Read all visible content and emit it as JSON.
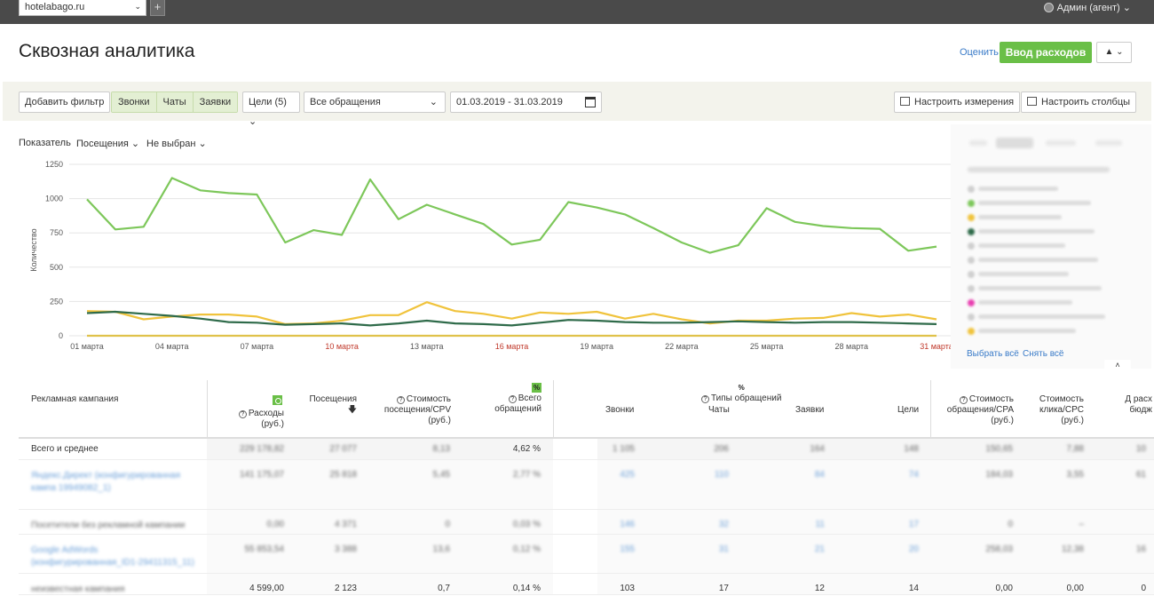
{
  "topbar": {
    "site": "hotelabago.ru",
    "add_icon": "plus-icon",
    "user": "Админ (агент)"
  },
  "header": {
    "title": "Сквозная аналитика",
    "rate_link": "Оценить",
    "expenses_button": "Ввод расходов",
    "export_icon": "export-icon"
  },
  "filters": {
    "add_filter": "Добавить фильтр",
    "segments": [
      "Звонки",
      "Чаты",
      "Заявки"
    ],
    "goals": "Цели (5)",
    "requests": "Все обращения",
    "date_range": "01.03.2019 - 31.03.2019",
    "configure_dimensions": "Настроить измерения",
    "configure_columns": "Настроить столбцы"
  },
  "indicator": {
    "label": "Показатель",
    "metric": "Посещения",
    "second": "Не выбран"
  },
  "chart_data": {
    "type": "line",
    "ylabel": "Количество",
    "ylim": [
      0,
      1250
    ],
    "yticks": [
      0,
      250,
      500,
      750,
      1000,
      1250
    ],
    "x": [
      "01",
      "02",
      "03",
      "04",
      "05",
      "06",
      "07",
      "08",
      "09",
      "10",
      "11",
      "12",
      "13",
      "14",
      "15",
      "16",
      "17",
      "18",
      "19",
      "20",
      "21",
      "22",
      "23",
      "24",
      "25",
      "26",
      "27",
      "28",
      "29",
      "30",
      "31"
    ],
    "xtick_labels": [
      "01 марта",
      "04 марта",
      "07 марта",
      "10 марта",
      "13 марта",
      "16 марта",
      "19 марта",
      "22 марта",
      "25 марта",
      "28 марта",
      "31 марта"
    ],
    "xtick_red": [
      "10 марта",
      "16 марта",
      "31 марта"
    ],
    "grid": true,
    "series": [
      {
        "color": "#7dc75a",
        "values": [
          995,
          775,
          795,
          1150,
          1060,
          1040,
          1030,
          680,
          770,
          735,
          1140,
          850,
          955,
          885,
          815,
          665,
          700,
          975,
          935,
          885,
          785,
          680,
          605,
          660,
          930,
          830,
          800,
          785,
          780,
          620,
          650
        ]
      },
      {
        "color": "#f0c33c",
        "values": [
          180,
          175,
          120,
          140,
          155,
          155,
          140,
          85,
          90,
          110,
          150,
          150,
          245,
          180,
          160,
          125,
          170,
          160,
          175,
          125,
          160,
          120,
          90,
          110,
          110,
          125,
          130,
          165,
          140,
          155,
          120
        ]
      },
      {
        "color": "#2f6b4a",
        "values": [
          165,
          175,
          160,
          145,
          125,
          100,
          95,
          80,
          85,
          90,
          75,
          90,
          110,
          90,
          85,
          75,
          95,
          115,
          110,
          100,
          95,
          95,
          100,
          105,
          100,
          95,
          100,
          100,
          95,
          90,
          85
        ]
      },
      {
        "color": "#e0c24a",
        "values": [
          0,
          0,
          0,
          0,
          0,
          0,
          0,
          0,
          0,
          0,
          0,
          0,
          0,
          0,
          0,
          0,
          0,
          0,
          0,
          0,
          0,
          0,
          0,
          0,
          0,
          0,
          0,
          0,
          0,
          0,
          0
        ]
      }
    ]
  },
  "side_panel": {
    "select_all": "Выбрать всё",
    "deselect_all": "Снять всё",
    "legend_colors": [
      "#cfcfcf",
      "#7dc75a",
      "#f0c33c",
      "#2f6b4a",
      "#cfcfcf",
      "#cfcfcf",
      "#cfcfcf",
      "#cfcfcf",
      "#e83fb0",
      "#cfcfcf",
      "#f0c33c"
    ]
  },
  "table": {
    "headers": {
      "campaign": "Рекламная кампания",
      "expenses": "Расходы (руб.)",
      "visits": "Посещения",
      "cpv": "Стоимость посещения/CPV (руб.)",
      "total": "Всего обращений",
      "types": "Типы обращений",
      "calls": "Звонки",
      "chats": "Чаты",
      "requests": "Заявки",
      "goals": "Цели",
      "cpa": "Стоимость обращения/CPA (руб.)",
      "cpc": "Стоимость клика/CPC (руб.)",
      "budget": "Д расх бюдж"
    },
    "total_row": {
      "label": "Всего и среднее",
      "total_pct": "4,62 %",
      "expenses": "229 178,82",
      "visits": "27 077",
      "cpv": "8,13",
      "calls": "1 105",
      "chats": "206",
      "requests": "164",
      "goals": "148",
      "cpa": "150,65",
      "cpc": "7,88",
      "budget": "10"
    },
    "rows": [
      {
        "label": "Яндекс.Директ (конфигурированная кампа 19949082_1)",
        "expenses": "141 175,07",
        "visits": "25 818",
        "cpv": "5,45",
        "total": "2,77 %",
        "calls": "425",
        "chats": "110",
        "requests": "84",
        "goals": "74",
        "cpa": "184,03",
        "cpc": "3,55",
        "budget": "61"
      },
      {
        "label": "Посетители без рекламной кампании",
        "expenses": "0,00",
        "visits": "4 371",
        "cpv": "0",
        "total": "0,03 %",
        "calls": "146",
        "chats": "32",
        "requests": "11",
        "goals": "17",
        "cpa": "0",
        "cpc": "–",
        "budget": ""
      },
      {
        "label": "Google AdWords (конфигурированная_ID1-29411315_11)",
        "expenses": "55 853,54",
        "visits": "3 388",
        "cpv": "13,6",
        "total": "0,12 %",
        "calls": "155",
        "chats": "31",
        "requests": "21",
        "goals": "20",
        "cpa": "258,03",
        "cpc": "12,38",
        "budget": "16"
      },
      {
        "label": "неизвестная кампания",
        "expenses": "4 599,00",
        "visits": "2 123",
        "cpv": "0,7",
        "total": "0,14 %",
        "calls": "103",
        "chats": "17",
        "requests": "12",
        "goals": "14",
        "cpa": "0,00",
        "cpc": "0,00",
        "budget": "0"
      }
    ]
  }
}
